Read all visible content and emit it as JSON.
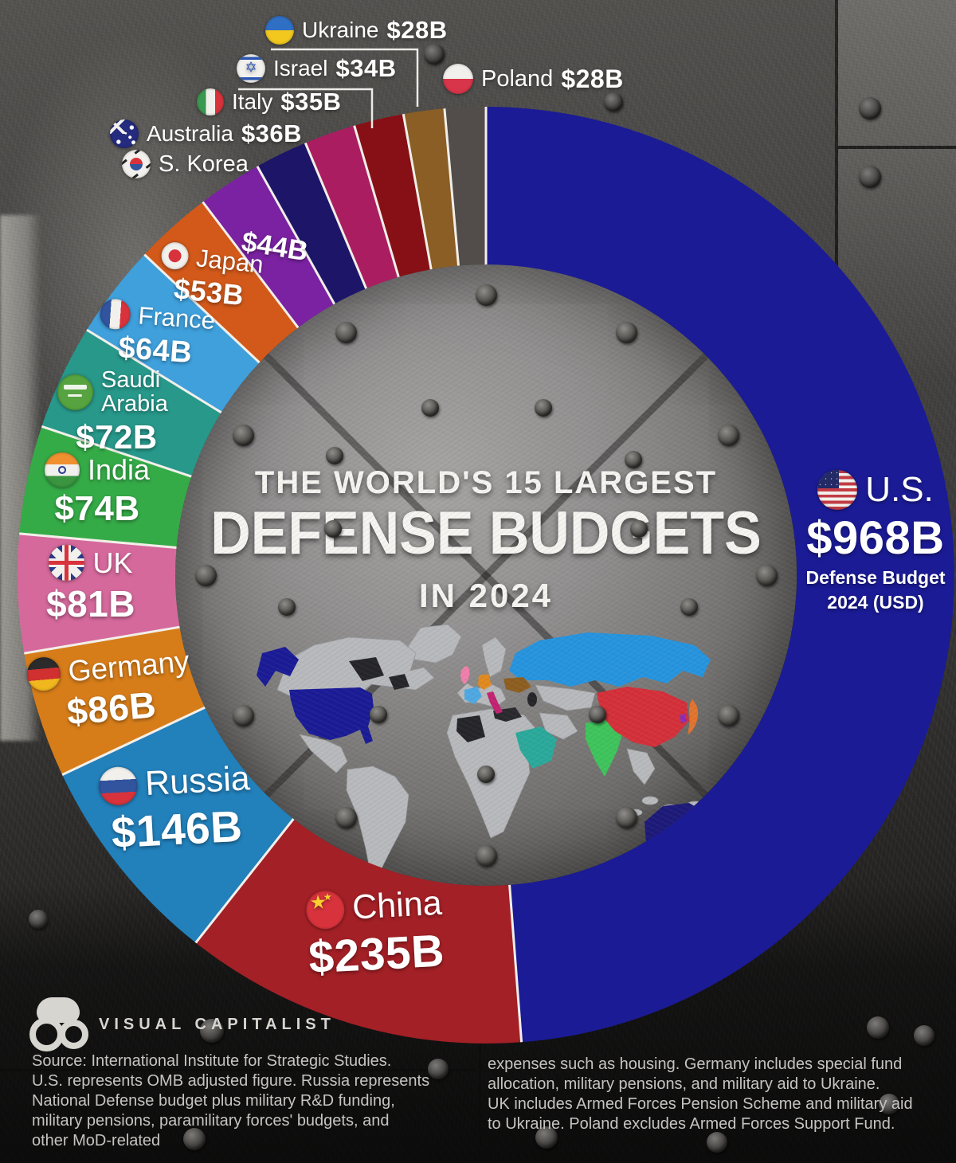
{
  "title": {
    "line1": "THE WORLD'S 15 LARGEST",
    "line2": "DEFENSE BUDGETS",
    "line3": "IN 2024"
  },
  "us_caption": {
    "sub1": "Defense Budget",
    "sub2": "2024 (USD)"
  },
  "chart_data": {
    "type": "pie",
    "subtype": "donut",
    "title": "The World's 15 Largest Defense Budgets in 2024",
    "unit": "USD billions",
    "total": 1984,
    "start_angle_deg": 0,
    "direction": "clockwise",
    "inner_radius_ratio": 0.66,
    "series": [
      {
        "id": "us",
        "name": "U.S.",
        "value": 968,
        "label": "$968B",
        "color": "#1b1b96",
        "flag_icon": "us-flag-icon"
      },
      {
        "id": "china",
        "name": "China",
        "value": 235,
        "label": "$235B",
        "color": "#a32026",
        "flag_icon": "china-flag-icon"
      },
      {
        "id": "russia",
        "name": "Russia",
        "value": 146,
        "label": "$146B",
        "color": "#2280bb",
        "flag_icon": "russia-flag-icon"
      },
      {
        "id": "germany",
        "name": "Germany",
        "value": 86,
        "label": "$86B",
        "color": "#d67d1a",
        "flag_icon": "germany-flag-icon"
      },
      {
        "id": "uk",
        "name": "UK",
        "value": 81,
        "label": "$81B",
        "color": "#d5699c",
        "flag_icon": "uk-flag-icon"
      },
      {
        "id": "india",
        "name": "India",
        "value": 74,
        "label": "$74B",
        "color": "#35ab47",
        "flag_icon": "india-flag-icon"
      },
      {
        "id": "saudi",
        "name": "Saudi Arabia",
        "value": 72,
        "label": "$72B",
        "color": "#27988a",
        "flag_icon": "saudi-arabia-flag-icon"
      },
      {
        "id": "france",
        "name": "France",
        "value": 64,
        "label": "$64B",
        "color": "#3fa0dc",
        "flag_icon": "france-flag-icon"
      },
      {
        "id": "japan",
        "name": "Japan",
        "value": 53,
        "label": "$53B",
        "color": "#d2591a",
        "flag_icon": "japan-flag-icon"
      },
      {
        "id": "skorea",
        "name": "S. Korea",
        "value": 44,
        "label": "$44B",
        "color": "#7b22a2",
        "flag_icon": "south-korea-flag-icon"
      },
      {
        "id": "australia",
        "name": "Australia",
        "value": 36,
        "label": "$36B",
        "color": "#1d1668",
        "flag_icon": "australia-flag-icon"
      },
      {
        "id": "italy",
        "name": "Italy",
        "value": 35,
        "label": "$35B",
        "color": "#ab1d61",
        "flag_icon": "italy-flag-icon"
      },
      {
        "id": "israel",
        "name": "Israel",
        "value": 34,
        "label": "$34B",
        "color": "#871016",
        "flag_icon": "israel-flag-icon"
      },
      {
        "id": "ukraine",
        "name": "Ukraine",
        "value": 28,
        "label": "$28B",
        "color": "#8a5e24",
        "flag_icon": "ukraine-flag-icon"
      },
      {
        "id": "poland",
        "name": "Poland",
        "value": 28,
        "label": "$28B",
        "color": "#524d4a",
        "flag_icon": "poland-flag-icon"
      }
    ]
  },
  "footer": {
    "logo_line1": "VISUAL",
    "logo_line2": "CAPITALIST",
    "source_left_lines": [
      "Source: International Institute for Strategic Studies.",
      "U.S. represents OMB adjusted figure. Russia represents",
      "National Defense budget plus military R&D funding,",
      "military pensions, paramilitary forces' budgets, and",
      "other MoD-related"
    ],
    "source_right_lines": [
      "expenses such as housing. Germany includes special fund",
      "allocation, military pensions, and military aid to Ukraine.",
      "UK includes Armed Forces Pension Scheme and military aid",
      "to Ukraine. Poland excludes Armed Forces Support Fund."
    ]
  }
}
